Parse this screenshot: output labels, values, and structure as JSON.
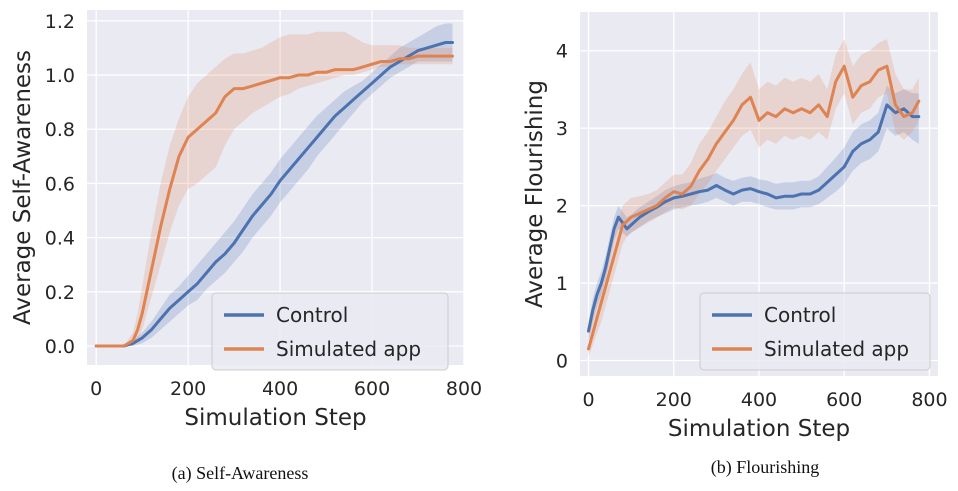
{
  "chart_data": [
    {
      "type": "line",
      "caption": "(a) Self-Awareness",
      "xlabel": "Simulation Step",
      "ylabel": "Average Self-Awareness",
      "xlim": [
        -20,
        800
      ],
      "ylim": [
        -0.07,
        1.24
      ],
      "xticks": [
        0,
        200,
        400,
        600,
        800
      ],
      "xtick_labels": [
        "0",
        "200",
        "400",
        "600",
        "800"
      ],
      "yticks": [
        0,
        0.2,
        0.4,
        0.6,
        0.8,
        1.0,
        1.2
      ],
      "ytick_labels": [
        "0.0",
        "0.2",
        "0.4",
        "0.6",
        "0.8",
        "1.0",
        "1.2"
      ],
      "grid": true,
      "legend": "lower-right",
      "series": [
        {
          "name": "Control",
          "color": "#4c72b0",
          "x": [
            0,
            60,
            80,
            100,
            120,
            140,
            160,
            180,
            200,
            220,
            240,
            260,
            280,
            300,
            320,
            340,
            360,
            380,
            400,
            420,
            440,
            460,
            480,
            500,
            520,
            540,
            560,
            580,
            600,
            620,
            640,
            660,
            680,
            700,
            720,
            740,
            760,
            775
          ],
          "y": [
            0,
            0,
            0.01,
            0.03,
            0.06,
            0.1,
            0.14,
            0.17,
            0.2,
            0.23,
            0.27,
            0.31,
            0.34,
            0.38,
            0.43,
            0.48,
            0.52,
            0.56,
            0.61,
            0.65,
            0.69,
            0.73,
            0.77,
            0.81,
            0.85,
            0.88,
            0.91,
            0.94,
            0.97,
            1.0,
            1.03,
            1.05,
            1.07,
            1.09,
            1.1,
            1.11,
            1.12,
            1.12
          ],
          "band_low": [
            0,
            0,
            0,
            0.01,
            0.03,
            0.06,
            0.09,
            0.12,
            0.15,
            0.17,
            0.21,
            0.24,
            0.27,
            0.31,
            0.35,
            0.4,
            0.44,
            0.48,
            0.53,
            0.57,
            0.61,
            0.65,
            0.7,
            0.74,
            0.78,
            0.82,
            0.86,
            0.9,
            0.93,
            0.96,
            0.99,
            1.01,
            1.03,
            1.05,
            1.05,
            1.05,
            1.05,
            1.05
          ],
          "band_high": [
            0,
            0,
            0.02,
            0.05,
            0.09,
            0.14,
            0.19,
            0.22,
            0.26,
            0.3,
            0.34,
            0.38,
            0.42,
            0.46,
            0.51,
            0.56,
            0.6,
            0.64,
            0.69,
            0.73,
            0.77,
            0.81,
            0.85,
            0.88,
            0.91,
            0.94,
            0.96,
            0.98,
            1.01,
            1.04,
            1.07,
            1.1,
            1.12,
            1.14,
            1.16,
            1.18,
            1.19,
            1.19
          ]
        },
        {
          "name": "Simulated app",
          "color": "#dd8452",
          "x": [
            0,
            60,
            80,
            90,
            100,
            110,
            120,
            140,
            160,
            180,
            200,
            220,
            240,
            260,
            280,
            300,
            320,
            340,
            360,
            380,
            400,
            420,
            440,
            460,
            480,
            500,
            520,
            540,
            560,
            580,
            600,
            620,
            640,
            660,
            680,
            700,
            720,
            740,
            760,
            775
          ],
          "y": [
            0,
            0,
            0.02,
            0.06,
            0.12,
            0.2,
            0.28,
            0.44,
            0.58,
            0.7,
            0.77,
            0.8,
            0.83,
            0.86,
            0.92,
            0.95,
            0.95,
            0.96,
            0.97,
            0.98,
            0.99,
            0.99,
            1.0,
            1.0,
            1.01,
            1.01,
            1.02,
            1.02,
            1.02,
            1.03,
            1.04,
            1.05,
            1.05,
            1.06,
            1.06,
            1.07,
            1.07,
            1.07,
            1.07,
            1.07
          ],
          "band_low": [
            0,
            0,
            0,
            0.02,
            0.06,
            0.12,
            0.18,
            0.3,
            0.42,
            0.52,
            0.58,
            0.6,
            0.63,
            0.66,
            0.74,
            0.8,
            0.83,
            0.86,
            0.88,
            0.9,
            0.92,
            0.93,
            0.95,
            0.96,
            0.97,
            0.98,
            0.99,
            1.0,
            1.0,
            1.01,
            1.02,
            1.03,
            1.03,
            1.04,
            1.04,
            1.04,
            1.04,
            1.04,
            1.04,
            1.04
          ],
          "band_high": [
            0,
            0,
            0.05,
            0.12,
            0.22,
            0.32,
            0.42,
            0.6,
            0.74,
            0.84,
            0.92,
            0.97,
            1.0,
            1.03,
            1.06,
            1.08,
            1.08,
            1.09,
            1.1,
            1.12,
            1.14,
            1.15,
            1.15,
            1.15,
            1.16,
            1.16,
            1.16,
            1.16,
            1.14,
            1.12,
            1.11,
            1.11,
            1.11,
            1.11,
            1.1,
            1.1,
            1.1,
            1.1,
            1.1,
            1.1
          ]
        }
      ]
    },
    {
      "type": "line",
      "caption": "(b) Flourishing",
      "xlabel": "Simulation Step",
      "ylabel": "Average Flourishing",
      "xlim": [
        -20,
        820
      ],
      "ylim": [
        -0.2,
        4.5
      ],
      "xticks": [
        0,
        200,
        400,
        600,
        800
      ],
      "xtick_labels": [
        "0",
        "200",
        "400",
        "600",
        "800"
      ],
      "yticks": [
        0,
        1,
        2,
        3,
        4
      ],
      "ytick_labels": [
        "0",
        "1",
        "2",
        "3",
        "4"
      ],
      "grid": true,
      "legend": "lower-right",
      "series": [
        {
          "name": "Control",
          "color": "#4c72b0",
          "x": [
            0,
            10,
            20,
            30,
            40,
            50,
            60,
            70,
            80,
            90,
            100,
            120,
            140,
            160,
            180,
            200,
            220,
            240,
            260,
            280,
            300,
            320,
            340,
            360,
            380,
            400,
            420,
            440,
            460,
            480,
            500,
            520,
            540,
            560,
            580,
            600,
            620,
            640,
            660,
            680,
            700,
            720,
            740,
            760,
            775
          ],
          "y": [
            0.38,
            0.65,
            0.85,
            1.0,
            1.2,
            1.45,
            1.7,
            1.85,
            1.78,
            1.7,
            1.75,
            1.85,
            1.92,
            1.98,
            2.05,
            2.1,
            2.12,
            2.15,
            2.18,
            2.2,
            2.26,
            2.2,
            2.15,
            2.2,
            2.22,
            2.18,
            2.15,
            2.1,
            2.12,
            2.12,
            2.15,
            2.15,
            2.2,
            2.3,
            2.4,
            2.5,
            2.7,
            2.8,
            2.85,
            2.95,
            3.3,
            3.2,
            3.25,
            3.15,
            3.15
          ],
          "band_low": [
            0.25,
            0.5,
            0.7,
            0.85,
            1.05,
            1.3,
            1.55,
            1.7,
            1.65,
            1.6,
            1.65,
            1.72,
            1.8,
            1.85,
            1.9,
            1.95,
            1.98,
            2.0,
            2.02,
            2.05,
            2.1,
            2.05,
            2.0,
            2.05,
            2.05,
            2.02,
            1.98,
            1.95,
            1.95,
            1.95,
            1.98,
            1.98,
            2.02,
            2.1,
            2.18,
            2.28,
            2.45,
            2.55,
            2.6,
            2.7,
            3.0,
            2.9,
            2.95,
            2.85,
            2.8
          ],
          "band_high": [
            0.5,
            0.8,
            1.0,
            1.15,
            1.35,
            1.6,
            1.85,
            2.0,
            1.92,
            1.85,
            1.88,
            1.98,
            2.05,
            2.12,
            2.2,
            2.25,
            2.28,
            2.3,
            2.35,
            2.38,
            2.42,
            2.36,
            2.32,
            2.36,
            2.38,
            2.34,
            2.32,
            2.28,
            2.3,
            2.3,
            2.32,
            2.32,
            2.38,
            2.5,
            2.62,
            2.75,
            2.95,
            3.05,
            3.1,
            3.2,
            3.55,
            3.45,
            3.5,
            3.45,
            3.45
          ]
        },
        {
          "name": "Simulated app",
          "color": "#dd8452",
          "x": [
            0,
            10,
            20,
            30,
            40,
            50,
            60,
            70,
            80,
            90,
            100,
            120,
            140,
            160,
            180,
            200,
            220,
            240,
            260,
            280,
            300,
            320,
            340,
            360,
            380,
            400,
            420,
            440,
            460,
            480,
            500,
            520,
            540,
            560,
            580,
            600,
            620,
            640,
            660,
            680,
            700,
            720,
            740,
            760,
            775
          ],
          "y": [
            0.15,
            0.35,
            0.55,
            0.75,
            0.95,
            1.15,
            1.35,
            1.55,
            1.75,
            1.8,
            1.85,
            1.9,
            1.95,
            2.0,
            2.1,
            2.18,
            2.15,
            2.25,
            2.45,
            2.6,
            2.8,
            2.95,
            3.1,
            3.3,
            3.4,
            3.1,
            3.2,
            3.15,
            3.25,
            3.2,
            3.25,
            3.2,
            3.3,
            3.15,
            3.6,
            3.8,
            3.4,
            3.55,
            3.6,
            3.75,
            3.8,
            3.3,
            3.15,
            3.2,
            3.35
          ],
          "band_low": [
            0.05,
            0.2,
            0.35,
            0.5,
            0.7,
            0.9,
            1.1,
            1.3,
            1.5,
            1.6,
            1.65,
            1.72,
            1.78,
            1.85,
            1.92,
            1.98,
            1.95,
            2.0,
            2.15,
            2.28,
            2.45,
            2.6,
            2.75,
            2.9,
            2.98,
            2.75,
            2.85,
            2.8,
            2.9,
            2.85,
            2.9,
            2.85,
            2.95,
            2.85,
            3.25,
            3.45,
            3.05,
            3.2,
            3.25,
            3.4,
            3.45,
            2.95,
            2.85,
            2.95,
            3.1
          ],
          "band_high": [
            0.3,
            0.55,
            0.75,
            0.95,
            1.2,
            1.4,
            1.6,
            1.8,
            2.0,
            2.05,
            2.1,
            2.12,
            2.15,
            2.2,
            2.3,
            2.4,
            2.4,
            2.55,
            2.8,
            2.95,
            3.15,
            3.35,
            3.5,
            3.7,
            3.85,
            3.5,
            3.6,
            3.55,
            3.65,
            3.6,
            3.65,
            3.6,
            3.7,
            3.5,
            3.95,
            4.15,
            3.8,
            3.95,
            4.0,
            4.1,
            4.15,
            3.7,
            3.5,
            3.5,
            3.65
          ]
        }
      ]
    }
  ]
}
